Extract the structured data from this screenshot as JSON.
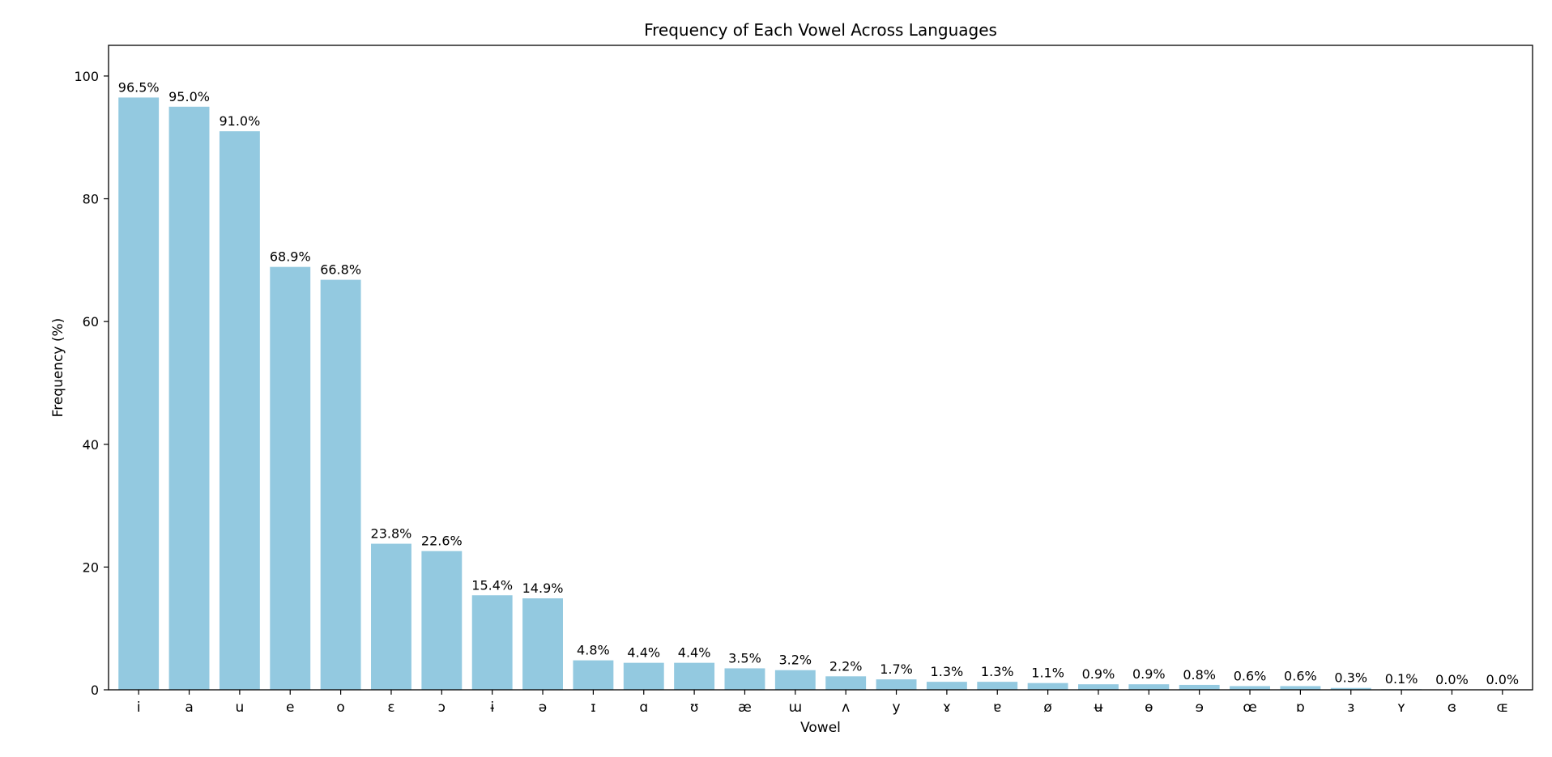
{
  "chart_data": {
    "type": "bar",
    "title": "Frequency of Each Vowel Across Languages",
    "xlabel": "Vowel",
    "ylabel": "Frequency (%)",
    "ylim": [
      0,
      105
    ],
    "yticks": [
      0,
      20,
      40,
      60,
      80,
      100
    ],
    "grid": false,
    "legend": "none",
    "bar_color": "#93c9e0",
    "categories": [
      "i",
      "a",
      "u",
      "e",
      "o",
      "ɛ",
      "ɔ",
      "ɨ",
      "ə",
      "ɪ",
      "ɑ",
      "ʊ",
      "æ",
      "ɯ",
      "ʌ",
      "y",
      "ɤ",
      "ɐ",
      "ø",
      "ʉ",
      "ɵ",
      "ɘ",
      "œ",
      "ɒ",
      "ɜ",
      "ʏ",
      "ɞ",
      "ɶ"
    ],
    "values": [
      96.5,
      95.0,
      91.0,
      68.9,
      66.8,
      23.8,
      22.6,
      15.4,
      14.9,
      4.8,
      4.4,
      4.4,
      3.5,
      3.2,
      2.2,
      1.7,
      1.3,
      1.3,
      1.1,
      0.9,
      0.9,
      0.8,
      0.6,
      0.6,
      0.3,
      0.1,
      0.0,
      0.0
    ],
    "value_labels": [
      "96.5%",
      "95.0%",
      "91.0%",
      "68.9%",
      "66.8%",
      "23.8%",
      "22.6%",
      "15.4%",
      "14.9%",
      "4.8%",
      "4.4%",
      "4.4%",
      "3.5%",
      "3.2%",
      "2.2%",
      "1.7%",
      "1.3%",
      "1.3%",
      "1.1%",
      "0.9%",
      "0.9%",
      "0.8%",
      "0.6%",
      "0.6%",
      "0.3%",
      "0.1%",
      "0.0%",
      "0.0%"
    ]
  }
}
